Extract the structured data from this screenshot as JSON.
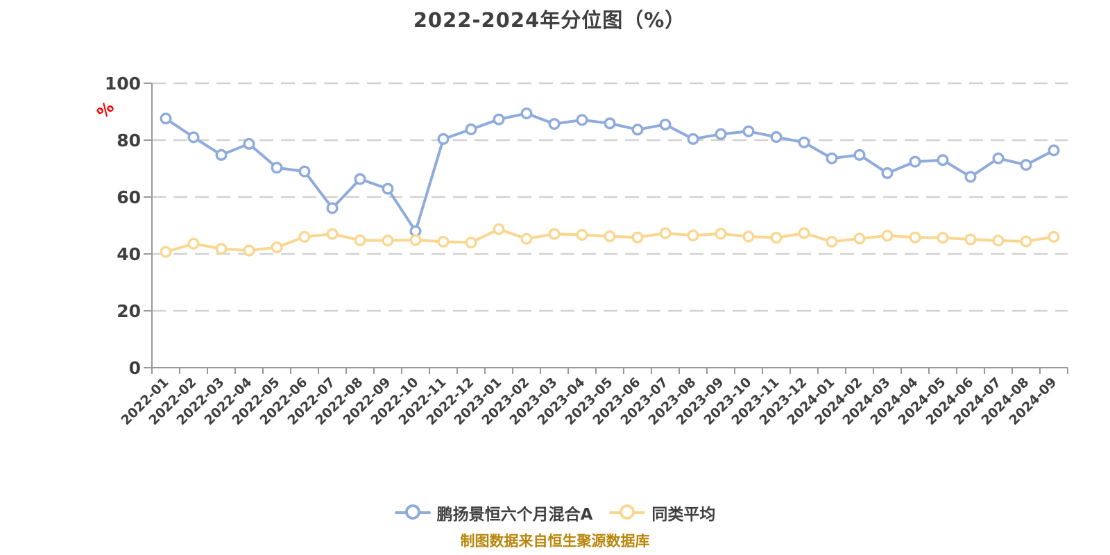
{
  "title": "2022-2024年分位图（%）",
  "footer": "制图数据来自恒生聚源数据库",
  "y_axis": {
    "unit_label": "%",
    "ticks": [
      0,
      20,
      40,
      60,
      80,
      100
    ]
  },
  "legend": [
    {
      "name": "鹏扬景恒六个月混合A",
      "color": "#8FAADC"
    },
    {
      "name": "同类平均",
      "color": "#FAD791"
    }
  ],
  "colors": {
    "background": "#ffffff",
    "title_text": "#3f3f3f",
    "axis_line": "#999999",
    "axis_label": "#3f3f3f",
    "gridline": "#d2d2d2",
    "unit_label": "#ff0000",
    "legend_text": "#404040",
    "footer_text": "#b8860b",
    "marker_fill": "#ffffff"
  },
  "chart_data": {
    "type": "line",
    "title": "2022-2024年分位图（%）",
    "xlabel": "",
    "ylabel": "%",
    "ylim": [
      0,
      100
    ],
    "y_ticks": [
      0,
      20,
      40,
      60,
      80,
      100
    ],
    "grid": "horizontal-dashed",
    "legend_position": "bottom",
    "categories": [
      "2022-01",
      "2022-02",
      "2022-03",
      "2022-04",
      "2022-05",
      "2022-06",
      "2022-07",
      "2022-08",
      "2022-09",
      "2022-10",
      "2022-11",
      "2022-12",
      "2023-01",
      "2023-02",
      "2023-03",
      "2023-04",
      "2023-05",
      "2023-06",
      "2023-07",
      "2023-08",
      "2023-09",
      "2023-10",
      "2023-11",
      "2023-12",
      "2024-01",
      "2024-02",
      "2024-03",
      "2024-04",
      "2024-05",
      "2024-06",
      "2024-07",
      "2024-08",
      "2024-09"
    ],
    "series": [
      {
        "name": "鹏扬景恒六个月混合A",
        "color": "#8FAADC",
        "values": [
          87.6,
          81.0,
          74.8,
          78.7,
          70.3,
          69.0,
          56.1,
          66.3,
          62.9,
          48.0,
          80.4,
          83.8,
          87.3,
          89.4,
          85.7,
          87.1,
          85.9,
          83.7,
          85.5,
          80.4,
          82.1,
          83.1,
          81.1,
          79.2,
          73.6,
          74.8,
          68.4,
          72.4,
          73.0,
          67.1,
          73.6,
          71.3,
          76.4
        ]
      },
      {
        "name": "同类平均",
        "color": "#FAD791",
        "values": [
          40.7,
          43.6,
          41.8,
          41.2,
          42.3,
          46.0,
          47.0,
          44.8,
          44.7,
          44.9,
          44.3,
          44.0,
          48.7,
          45.3,
          47.0,
          46.7,
          46.2,
          45.8,
          47.3,
          46.5,
          47.1,
          46.1,
          45.7,
          47.3,
          44.3,
          45.4,
          46.4,
          45.8,
          45.7,
          45.1,
          44.7,
          44.4,
          46.0
        ]
      }
    ]
  }
}
